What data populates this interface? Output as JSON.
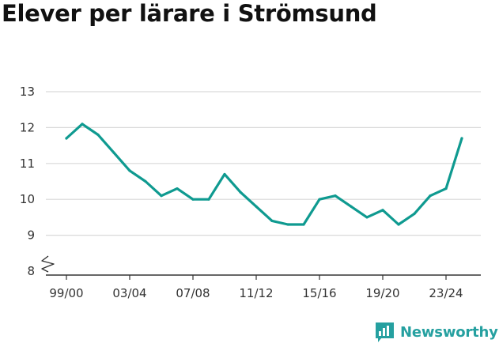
{
  "chart_data": {
    "type": "line",
    "title": "Elever per lärare i Strömsund",
    "xlabel": "",
    "ylabel": "",
    "y_ticks": [
      8,
      9,
      10,
      11,
      12,
      13
    ],
    "ylim": [
      8,
      13
    ],
    "y_axis_break": true,
    "x_tick_labels": [
      "99/00",
      "03/04",
      "07/08",
      "11/12",
      "15/16",
      "19/20",
      "23/24"
    ],
    "x": [
      "99/00",
      "00/01",
      "01/02",
      "02/03",
      "03/04",
      "04/05",
      "05/06",
      "06/07",
      "07/08",
      "08/09",
      "09/10",
      "10/11",
      "11/12",
      "12/13",
      "13/14",
      "14/15",
      "15/16",
      "16/17",
      "17/18",
      "18/19",
      "19/20",
      "20/21",
      "21/22",
      "22/23",
      "23/24",
      "24/25"
    ],
    "values": [
      11.7,
      12.1,
      11.8,
      11.3,
      10.8,
      10.5,
      10.1,
      10.3,
      10.0,
      10.0,
      10.7,
      10.2,
      9.8,
      9.4,
      9.3,
      9.3,
      10.0,
      10.1,
      9.8,
      9.5,
      9.7,
      9.3,
      9.6,
      10.1,
      10.3,
      11.7
    ],
    "line_color": "#0f9a90",
    "grid": true
  },
  "brand": {
    "name": "Newsworthy",
    "icon": "newsworthy-chart-icon",
    "color": "#25a0a0"
  }
}
